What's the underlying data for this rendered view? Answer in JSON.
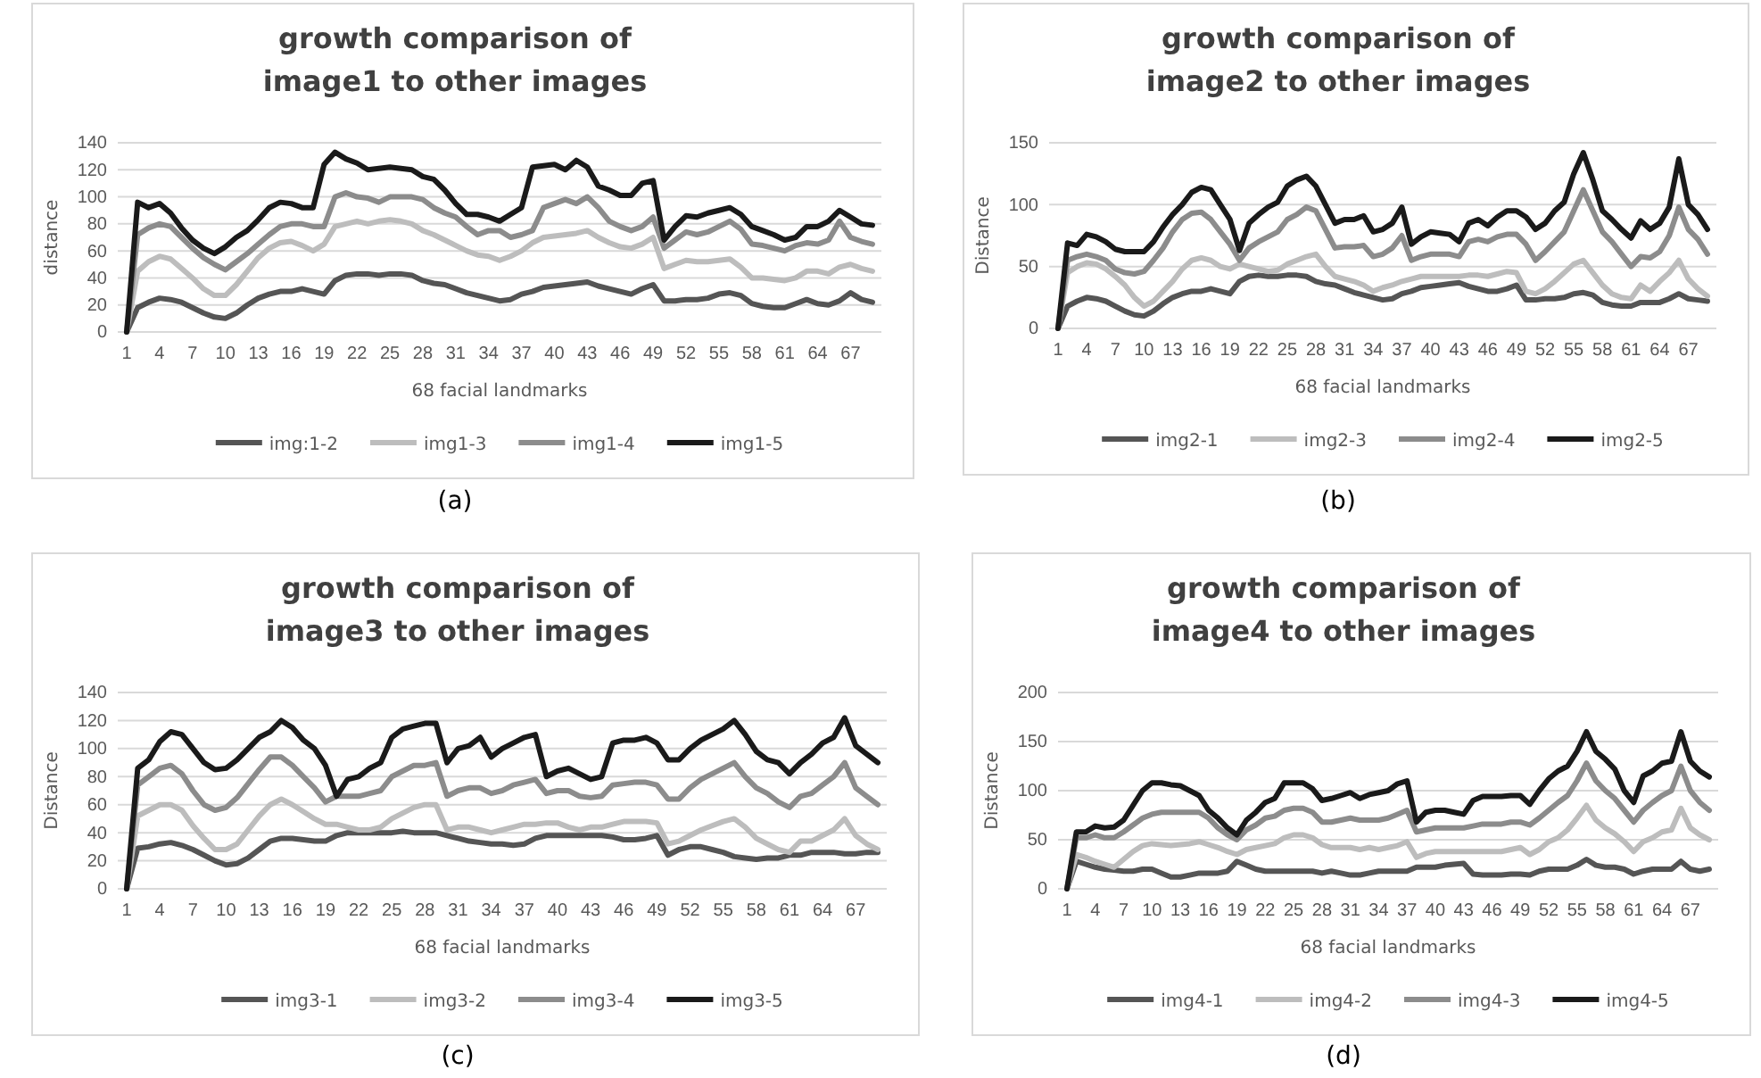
{
  "chart_data": [
    {
      "type": "line",
      "title": "growth comparison  of\nimage1 to other images",
      "xlabel": "68 facial landmarks",
      "ylabel": "distance",
      "ylim": [
        0,
        140
      ],
      "yticks": [
        0,
        20,
        40,
        60,
        80,
        100,
        120,
        140
      ],
      "grid": "y",
      "legend": "bottom",
      "marker": "none",
      "line_style": "solid",
      "annotations": [
        "(a)"
      ],
      "categories": [
        "1",
        null,
        null,
        "4",
        null,
        null,
        "7",
        null,
        null,
        "10",
        null,
        null,
        "13",
        null,
        null,
        "16",
        null,
        null,
        "19",
        null,
        null,
        "22",
        null,
        null,
        "25",
        null,
        null,
        "28",
        null,
        null,
        "31",
        null,
        null,
        "34",
        null,
        null,
        "37",
        null,
        null,
        "40",
        null,
        null,
        "43",
        null,
        null,
        "46",
        null,
        null,
        "49",
        null,
        null,
        "52",
        null,
        null,
        "55",
        null,
        null,
        "58",
        null,
        null,
        "61",
        null,
        null,
        "64",
        null,
        null,
        "67",
        null,
        null
      ],
      "series": [
        {
          "name": "img:1-2",
          "color": "#555555",
          "values": [
            0,
            18,
            22,
            25,
            24,
            22,
            18,
            14,
            11,
            10,
            14,
            20,
            25,
            28,
            30,
            30,
            32,
            30,
            28,
            38,
            42,
            43,
            43,
            42,
            43,
            43,
            42,
            38,
            36,
            35,
            32,
            29,
            27,
            25,
            23,
            24,
            28,
            30,
            33,
            34,
            35,
            36,
            37,
            34,
            32,
            30,
            28,
            32,
            35,
            23,
            23,
            24,
            24,
            25,
            28,
            29,
            27,
            21,
            19,
            18,
            18,
            21,
            24,
            21,
            20,
            23,
            29,
            24,
            22
          ]
        },
        {
          "name": "img1-3",
          "color": "#bdbdbd",
          "values": [
            0,
            45,
            52,
            56,
            54,
            47,
            40,
            32,
            27,
            27,
            35,
            45,
            55,
            62,
            66,
            67,
            64,
            60,
            65,
            78,
            80,
            82,
            80,
            82,
            83,
            82,
            80,
            75,
            72,
            68,
            64,
            60,
            57,
            56,
            53,
            56,
            60,
            66,
            70,
            71,
            72,
            73,
            75,
            70,
            66,
            63,
            62,
            65,
            70,
            47,
            50,
            53,
            52,
            52,
            53,
            54,
            48,
            40,
            40,
            39,
            38,
            40,
            45,
            45,
            43,
            48,
            50,
            47,
            45
          ]
        },
        {
          "name": "img1-4",
          "color": "#8c8c8c",
          "values": [
            0,
            72,
            77,
            80,
            78,
            70,
            62,
            55,
            50,
            46,
            52,
            58,
            65,
            72,
            78,
            80,
            80,
            78,
            78,
            100,
            103,
            100,
            99,
            96,
            100,
            100,
            100,
            98,
            92,
            88,
            85,
            78,
            72,
            75,
            75,
            70,
            72,
            75,
            92,
            95,
            98,
            95,
            100,
            92,
            82,
            78,
            75,
            78,
            85,
            62,
            68,
            74,
            72,
            74,
            78,
            82,
            76,
            65,
            64,
            62,
            60,
            64,
            66,
            65,
            68,
            82,
            70,
            67,
            65
          ]
        },
        {
          "name": "img1-5",
          "color": "#1a1a1a",
          "values": [
            0,
            96,
            92,
            95,
            88,
            77,
            68,
            62,
            58,
            63,
            70,
            75,
            83,
            92,
            96,
            95,
            92,
            92,
            124,
            133,
            128,
            125,
            120,
            121,
            122,
            121,
            120,
            115,
            113,
            105,
            95,
            87,
            87,
            85,
            82,
            87,
            92,
            122,
            123,
            124,
            120,
            127,
            122,
            108,
            105,
            101,
            101,
            110,
            112,
            68,
            78,
            86,
            85,
            88,
            90,
            92,
            87,
            78,
            75,
            72,
            68,
            70,
            78,
            78,
            82,
            90,
            85,
            80,
            79
          ]
        }
      ]
    },
    {
      "type": "line",
      "title": "growth comparison  of\nimage2 to other images",
      "xlabel": "68 facial landmarks",
      "ylabel": "Distance",
      "ylim": [
        0,
        150
      ],
      "yticks": [
        0,
        50,
        100,
        150
      ],
      "grid": "y",
      "legend": "bottom",
      "marker": "none",
      "line_style": "solid",
      "annotations": [
        "(b)"
      ],
      "categories": [
        "1",
        null,
        null,
        "4",
        null,
        null,
        "7",
        null,
        null,
        "10",
        null,
        null,
        "13",
        null,
        null,
        "16",
        null,
        null,
        "19",
        null,
        null,
        "22",
        null,
        null,
        "25",
        null,
        null,
        "28",
        null,
        null,
        "31",
        null,
        null,
        "34",
        null,
        null,
        "37",
        null,
        null,
        "40",
        null,
        null,
        "43",
        null,
        null,
        "46",
        null,
        null,
        "49",
        null,
        null,
        "52",
        null,
        null,
        "55",
        null,
        null,
        "58",
        null,
        null,
        "61",
        null,
        null,
        "64",
        null,
        null,
        "67",
        null,
        null
      ],
      "series": [
        {
          "name": "img2-1",
          "color": "#555555",
          "values": [
            0,
            18,
            22,
            25,
            24,
            22,
            18,
            14,
            11,
            10,
            14,
            20,
            25,
            28,
            30,
            30,
            32,
            30,
            28,
            38,
            42,
            43,
            42,
            42,
            43,
            43,
            42,
            38,
            36,
            35,
            32,
            29,
            27,
            25,
            23,
            24,
            28,
            30,
            33,
            34,
            35,
            36,
            37,
            34,
            32,
            30,
            30,
            32,
            35,
            23,
            23,
            24,
            24,
            25,
            28,
            29,
            27,
            21,
            19,
            18,
            18,
            21,
            21,
            21,
            24,
            28,
            24,
            23,
            22
          ]
        },
        {
          "name": "img2-3",
          "color": "#bdbdbd",
          "values": [
            0,
            45,
            50,
            53,
            52,
            48,
            42,
            35,
            25,
            18,
            22,
            30,
            38,
            48,
            55,
            57,
            55,
            50,
            48,
            52,
            50,
            48,
            46,
            47,
            52,
            55,
            58,
            60,
            50,
            42,
            40,
            38,
            35,
            30,
            33,
            35,
            38,
            40,
            42,
            42,
            42,
            42,
            42,
            43,
            43,
            42,
            44,
            46,
            45,
            30,
            28,
            32,
            38,
            45,
            52,
            55,
            45,
            35,
            28,
            25,
            24,
            35,
            30,
            38,
            45,
            55,
            40,
            32,
            26
          ]
        },
        {
          "name": "img2-4",
          "color": "#8c8c8c",
          "values": [
            0,
            55,
            58,
            60,
            58,
            55,
            48,
            45,
            44,
            46,
            55,
            65,
            78,
            88,
            93,
            94,
            88,
            78,
            68,
            55,
            65,
            70,
            74,
            78,
            88,
            92,
            98,
            95,
            80,
            65,
            66,
            66,
            67,
            58,
            60,
            65,
            75,
            55,
            58,
            60,
            60,
            60,
            58,
            70,
            72,
            70,
            74,
            76,
            76,
            68,
            55,
            62,
            70,
            78,
            95,
            112,
            95,
            78,
            70,
            60,
            50,
            58,
            57,
            62,
            75,
            98,
            80,
            72,
            60
          ]
        },
        {
          "name": "img2-5",
          "color": "#1a1a1a",
          "values": [
            0,
            69,
            67,
            76,
            74,
            70,
            64,
            62,
            62,
            62,
            70,
            82,
            92,
            100,
            110,
            114,
            112,
            100,
            88,
            63,
            85,
            92,
            98,
            102,
            115,
            120,
            123,
            115,
            100,
            85,
            88,
            88,
            91,
            78,
            80,
            85,
            98,
            68,
            74,
            78,
            77,
            76,
            70,
            85,
            88,
            83,
            90,
            95,
            95,
            90,
            80,
            85,
            95,
            102,
            125,
            142,
            120,
            95,
            88,
            80,
            73,
            87,
            80,
            85,
            98,
            137,
            100,
            92,
            80
          ]
        }
      ]
    },
    {
      "type": "line",
      "title": "growth comparison  of\nimage3 to other images",
      "xlabel": "68 facial landmarks",
      "ylabel": "Distance",
      "ylim": [
        0,
        140
      ],
      "yticks": [
        0,
        20,
        40,
        60,
        80,
        100,
        120,
        140
      ],
      "grid": "y",
      "legend": "bottom",
      "marker": "none",
      "line_style": "solid",
      "annotations": [
        "(c)"
      ],
      "categories": [
        "1",
        null,
        null,
        "4",
        null,
        null,
        "7",
        null,
        null,
        "10",
        null,
        null,
        "13",
        null,
        null,
        "16",
        null,
        null,
        "19",
        null,
        null,
        "22",
        null,
        null,
        "25",
        null,
        null,
        "28",
        null,
        null,
        "31",
        null,
        null,
        "34",
        null,
        null,
        "37",
        null,
        null,
        "40",
        null,
        null,
        "43",
        null,
        null,
        "46",
        null,
        null,
        "49",
        null,
        null,
        "52",
        null,
        null,
        "55",
        null,
        null,
        "58",
        null,
        null,
        "61",
        null,
        null,
        "64",
        null,
        null,
        "67",
        null,
        null
      ],
      "series": [
        {
          "name": "img3-1",
          "color": "#555555",
          "values": [
            0,
            29,
            30,
            32,
            33,
            31,
            28,
            24,
            20,
            17,
            18,
            22,
            28,
            34,
            36,
            36,
            35,
            34,
            34,
            38,
            40,
            40,
            40,
            40,
            40,
            41,
            40,
            40,
            40,
            38,
            36,
            34,
            33,
            32,
            32,
            31,
            32,
            36,
            38,
            38,
            38,
            38,
            38,
            38,
            37,
            35,
            35,
            36,
            38,
            24,
            28,
            30,
            30,
            28,
            26,
            23,
            22,
            21,
            22,
            22,
            24,
            24,
            26,
            26,
            26,
            25,
            25,
            26,
            26
          ]
        },
        {
          "name": "img3-2",
          "color": "#bdbdbd",
          "values": [
            0,
            52,
            56,
            60,
            60,
            56,
            45,
            36,
            28,
            28,
            32,
            42,
            52,
            60,
            64,
            60,
            55,
            50,
            46,
            46,
            44,
            42,
            42,
            44,
            50,
            54,
            58,
            60,
            60,
            42,
            44,
            44,
            42,
            40,
            42,
            44,
            46,
            46,
            47,
            47,
            44,
            42,
            44,
            44,
            46,
            48,
            48,
            48,
            47,
            32,
            34,
            38,
            42,
            45,
            48,
            50,
            44,
            36,
            32,
            28,
            26,
            34,
            34,
            38,
            42,
            50,
            38,
            32,
            28
          ]
        },
        {
          "name": "img3-4",
          "color": "#8c8c8c",
          "values": [
            0,
            74,
            80,
            86,
            88,
            82,
            70,
            60,
            56,
            58,
            65,
            75,
            85,
            94,
            94,
            88,
            80,
            72,
            62,
            66,
            66,
            66,
            68,
            70,
            80,
            84,
            88,
            88,
            90,
            66,
            70,
            72,
            72,
            68,
            70,
            74,
            76,
            78,
            68,
            70,
            70,
            66,
            65,
            66,
            74,
            75,
            76,
            76,
            74,
            64,
            64,
            72,
            78,
            82,
            86,
            90,
            80,
            72,
            68,
            62,
            58,
            66,
            68,
            74,
            80,
            90,
            72,
            66,
            60
          ]
        },
        {
          "name": "img3-5",
          "color": "#1a1a1a",
          "values": [
            0,
            86,
            92,
            105,
            112,
            110,
            100,
            90,
            85,
            86,
            92,
            100,
            108,
            112,
            120,
            115,
            106,
            100,
            88,
            66,
            78,
            80,
            86,
            90,
            108,
            114,
            116,
            118,
            118,
            90,
            100,
            102,
            108,
            94,
            100,
            104,
            108,
            110,
            80,
            84,
            86,
            82,
            78,
            80,
            104,
            106,
            106,
            108,
            104,
            92,
            92,
            100,
            106,
            110,
            114,
            120,
            110,
            98,
            92,
            90,
            82,
            90,
            96,
            104,
            108,
            122,
            102,
            96,
            90
          ]
        }
      ]
    },
    {
      "type": "line",
      "title": "growth comparison  of\nimage4 to other images",
      "xlabel": "68 facial landmarks",
      "ylabel": "Distance",
      "ylim": [
        0,
        200
      ],
      "yticks": [
        0,
        50,
        100,
        150,
        200
      ],
      "grid": "y",
      "legend": "bottom",
      "marker": "none",
      "line_style": "solid",
      "annotations": [
        "(d)"
      ],
      "categories": [
        "1",
        null,
        null,
        "4",
        null,
        null,
        "7",
        null,
        null,
        "10",
        null,
        null,
        "13",
        null,
        null,
        "16",
        null,
        null,
        "19",
        null,
        null,
        "22",
        null,
        null,
        "25",
        null,
        null,
        "28",
        null,
        null,
        "31",
        null,
        null,
        "34",
        null,
        null,
        "37",
        null,
        null,
        "40",
        null,
        null,
        "43",
        null,
        null,
        "46",
        null,
        null,
        "49",
        null,
        null,
        "52",
        null,
        null,
        "55",
        null,
        null,
        "58",
        null,
        null,
        "61",
        null,
        null,
        "64",
        null,
        null,
        "67",
        null,
        null
      ],
      "series": [
        {
          "name": "img4-1",
          "color": "#555555",
          "values": [
            0,
            28,
            25,
            22,
            20,
            19,
            18,
            18,
            20,
            20,
            16,
            12,
            12,
            14,
            16,
            16,
            16,
            18,
            28,
            24,
            20,
            18,
            18,
            18,
            18,
            18,
            18,
            16,
            18,
            16,
            14,
            14,
            16,
            18,
            18,
            18,
            18,
            22,
            22,
            22,
            24,
            25,
            26,
            15,
            14,
            14,
            14,
            15,
            15,
            14,
            18,
            20,
            20,
            20,
            24,
            30,
            24,
            22,
            22,
            20,
            15,
            18,
            20,
            20,
            20,
            28,
            20,
            18,
            20
          ]
        },
        {
          "name": "img4-2",
          "color": "#bdbdbd",
          "values": [
            0,
            35,
            32,
            28,
            25,
            22,
            30,
            38,
            44,
            46,
            45,
            44,
            45,
            46,
            48,
            45,
            42,
            38,
            35,
            40,
            42,
            44,
            46,
            52,
            55,
            55,
            52,
            45,
            42,
            42,
            42,
            40,
            42,
            40,
            42,
            44,
            48,
            32,
            36,
            38,
            38,
            38,
            38,
            38,
            38,
            38,
            38,
            40,
            42,
            35,
            40,
            48,
            52,
            60,
            72,
            85,
            70,
            62,
            56,
            48,
            38,
            48,
            52,
            58,
            60,
            82,
            62,
            55,
            50
          ]
        },
        {
          "name": "img4-3",
          "color": "#8c8c8c",
          "values": [
            0,
            52,
            52,
            55,
            52,
            52,
            58,
            65,
            72,
            76,
            78,
            78,
            78,
            78,
            78,
            72,
            62,
            55,
            50,
            60,
            65,
            72,
            74,
            80,
            82,
            82,
            78,
            68,
            68,
            70,
            72,
            70,
            70,
            70,
            72,
            76,
            80,
            58,
            60,
            62,
            62,
            62,
            62,
            64,
            66,
            66,
            66,
            68,
            68,
            65,
            72,
            80,
            88,
            95,
            110,
            128,
            110,
            100,
            92,
            80,
            68,
            80,
            88,
            95,
            100,
            125,
            100,
            88,
            80
          ]
        },
        {
          "name": "img4-5",
          "color": "#1a1a1a",
          "values": [
            0,
            58,
            58,
            64,
            62,
            63,
            70,
            85,
            100,
            108,
            108,
            106,
            105,
            100,
            95,
            80,
            72,
            62,
            55,
            70,
            78,
            88,
            92,
            108,
            108,
            108,
            102,
            90,
            92,
            95,
            98,
            92,
            96,
            98,
            100,
            107,
            110,
            68,
            78,
            80,
            80,
            78,
            76,
            90,
            94,
            94,
            94,
            95,
            95,
            86,
            100,
            112,
            120,
            125,
            140,
            160,
            140,
            132,
            122,
            100,
            88,
            115,
            120,
            128,
            130,
            160,
            130,
            120,
            114
          ]
        }
      ]
    }
  ]
}
